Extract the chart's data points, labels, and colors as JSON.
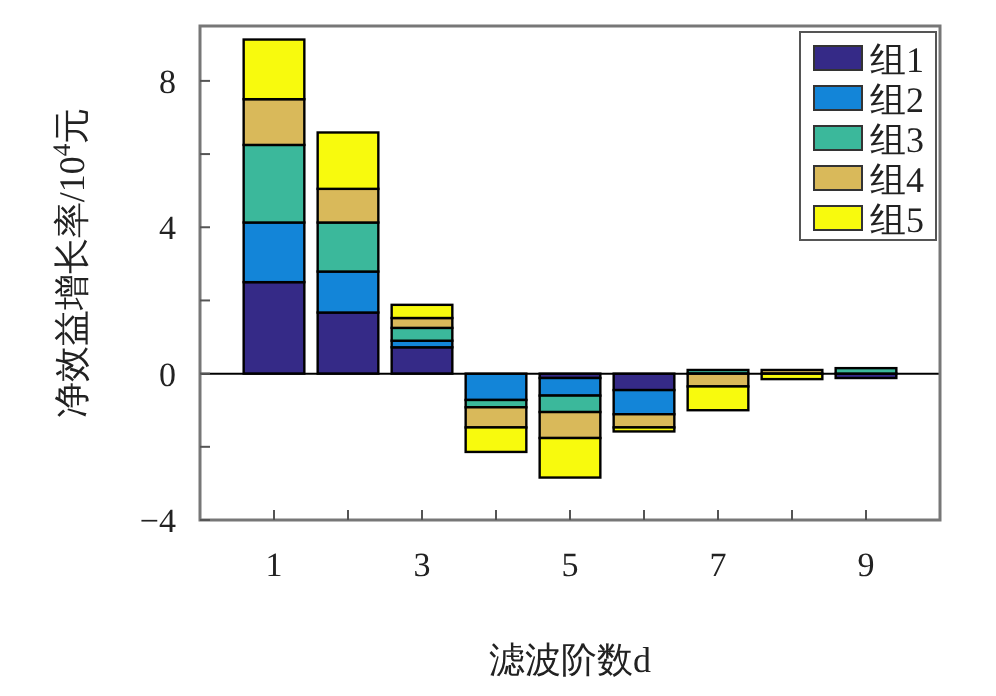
{
  "chart_data": {
    "type": "bar",
    "stacked": true,
    "xlabel": "滤波阶数d",
    "ylabel": "净效益增长率/10$^{4}$元",
    "x": [
      1,
      2,
      3,
      4,
      5,
      6,
      7,
      8,
      9
    ],
    "series": [
      {
        "name": "组1",
        "color": "#352a87",
        "values": [
          2.5,
          1.67,
          0.72,
          null,
          -0.12,
          -0.45,
          null,
          null,
          -0.12
        ]
      },
      {
        "name": "组2",
        "color": "#1385d8",
        "values": [
          1.63,
          1.12,
          0.18,
          -0.72,
          -0.48,
          -0.66,
          null,
          null,
          null
        ]
      },
      {
        "name": "组3",
        "color": "#3bb89b",
        "values": [
          2.12,
          1.34,
          0.35,
          -0.2,
          -0.45,
          null,
          0.1,
          null,
          0.15
        ]
      },
      {
        "name": "组4",
        "color": "#d9b95a",
        "values": [
          1.25,
          0.92,
          0.27,
          -0.55,
          -0.71,
          -0.36,
          -0.35,
          0.1,
          null
        ]
      },
      {
        "name": "组5",
        "color": "#f8fa0d",
        "values": [
          1.63,
          1.54,
          0.36,
          -0.67,
          -1.08,
          -0.11,
          -0.65,
          -0.15,
          0
        ]
      }
    ],
    "xlim": [
      0,
      10
    ],
    "xticks": [
      1,
      {
        "value": 2,
        "label": null
      },
      3,
      {
        "value": 4,
        "label": null
      },
      5,
      {
        "value": 6,
        "label": null
      },
      7,
      {
        "value": 8,
        "label": null
      },
      9
    ],
    "ylim": [
      -4,
      9.5
    ],
    "yticks": [
      -4,
      {
        "value": -2,
        "label": null
      },
      0,
      {
        "value": 2,
        "label": null
      },
      4,
      {
        "value": 6,
        "label": null
      },
      8
    ],
    "ref_lines": [
      {
        "axis": "y",
        "value": 0,
        "color": "#000000"
      }
    ],
    "legend": "top right",
    "grid": false
  }
}
